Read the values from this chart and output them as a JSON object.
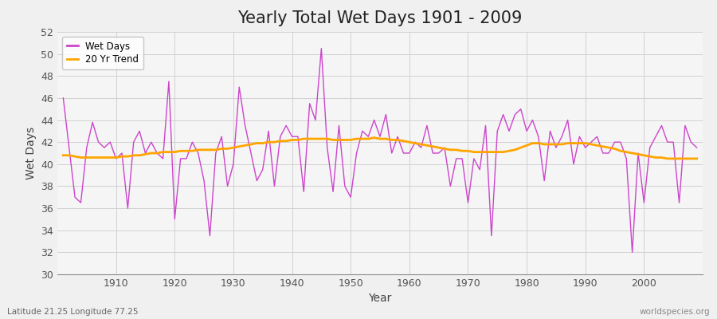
{
  "title": "Yearly Total Wet Days 1901 - 2009",
  "xlabel": "Year",
  "ylabel": "Wet Days",
  "subtitle_left": "Latitude 21.25 Longitude 77.25",
  "subtitle_right": "worldspecies.org",
  "years": [
    1901,
    1902,
    1903,
    1904,
    1905,
    1906,
    1907,
    1908,
    1909,
    1910,
    1911,
    1912,
    1913,
    1914,
    1915,
    1916,
    1917,
    1918,
    1919,
    1920,
    1921,
    1922,
    1923,
    1924,
    1925,
    1926,
    1927,
    1928,
    1929,
    1930,
    1931,
    1932,
    1933,
    1934,
    1935,
    1936,
    1937,
    1938,
    1939,
    1940,
    1941,
    1942,
    1943,
    1944,
    1945,
    1946,
    1947,
    1948,
    1949,
    1950,
    1951,
    1952,
    1953,
    1954,
    1955,
    1956,
    1957,
    1958,
    1959,
    1960,
    1961,
    1962,
    1963,
    1964,
    1965,
    1966,
    1967,
    1968,
    1969,
    1970,
    1971,
    1972,
    1973,
    1974,
    1975,
    1976,
    1977,
    1978,
    1979,
    1980,
    1981,
    1982,
    1983,
    1984,
    1985,
    1986,
    1987,
    1988,
    1989,
    1990,
    1991,
    1992,
    1993,
    1994,
    1995,
    1996,
    1997,
    1998,
    1999,
    2000,
    2001,
    2002,
    2003,
    2004,
    2005,
    2006,
    2007,
    2008,
    2009
  ],
  "wet_days": [
    46.0,
    41.5,
    37.0,
    36.5,
    41.5,
    43.8,
    42.0,
    41.5,
    42.0,
    40.5,
    41.0,
    36.0,
    42.0,
    43.0,
    41.0,
    42.0,
    41.0,
    40.5,
    47.5,
    35.0,
    40.5,
    40.5,
    42.0,
    41.0,
    38.5,
    33.5,
    41.0,
    42.5,
    38.0,
    40.0,
    47.0,
    43.5,
    41.0,
    38.5,
    39.5,
    43.0,
    38.0,
    42.5,
    43.5,
    42.5,
    42.5,
    37.5,
    45.5,
    44.0,
    50.5,
    41.5,
    37.5,
    43.5,
    38.0,
    37.0,
    41.0,
    43.0,
    42.5,
    44.0,
    42.5,
    44.5,
    41.0,
    42.5,
    41.0,
    41.0,
    42.0,
    41.5,
    43.5,
    41.0,
    41.0,
    41.5,
    38.0,
    40.5,
    40.5,
    36.5,
    40.5,
    39.5,
    43.5,
    33.5,
    43.0,
    44.5,
    43.0,
    44.5,
    45.0,
    43.0,
    44.0,
    42.5,
    38.5,
    43.0,
    41.5,
    42.5,
    44.0,
    40.0,
    42.5,
    41.5,
    42.0,
    42.5,
    41.0,
    41.0,
    42.0,
    42.0,
    40.5,
    32.0,
    41.0,
    36.5,
    41.5,
    42.5,
    43.5,
    42.0,
    42.0,
    36.5,
    43.5,
    42.0,
    41.5
  ],
  "trend_years": [
    1901,
    1902,
    1903,
    1904,
    1905,
    1906,
    1907,
    1908,
    1909,
    1910,
    1911,
    1912,
    1913,
    1914,
    1915,
    1916,
    1917,
    1918,
    1919,
    1920,
    1921,
    1922,
    1923,
    1924,
    1925,
    1926,
    1927,
    1928,
    1929,
    1930,
    1931,
    1932,
    1933,
    1934,
    1935,
    1936,
    1937,
    1938,
    1939,
    1940,
    1941,
    1942,
    1943,
    1944,
    1945,
    1946,
    1947,
    1948,
    1949,
    1950,
    1951,
    1952,
    1953,
    1954,
    1955,
    1956,
    1957,
    1958,
    1959,
    1960,
    1961,
    1962,
    1963,
    1964,
    1965,
    1966,
    1967,
    1968,
    1969,
    1970,
    1971,
    1972,
    1973,
    1974,
    1975,
    1976,
    1977,
    1978,
    1979,
    1980,
    1981,
    1982,
    1983,
    1984,
    1985,
    1986,
    1987,
    1988,
    1989,
    1990,
    1991,
    1992,
    1993,
    1994,
    1995,
    1996,
    1997,
    1998,
    1999,
    2000,
    2001,
    2002,
    2003,
    2004,
    2005,
    2006,
    2007,
    2008,
    2009
  ],
  "trend_values": [
    40.8,
    40.8,
    40.7,
    40.6,
    40.6,
    40.6,
    40.6,
    40.6,
    40.6,
    40.6,
    40.7,
    40.7,
    40.8,
    40.8,
    40.9,
    41.0,
    41.0,
    41.1,
    41.1,
    41.1,
    41.2,
    41.2,
    41.2,
    41.3,
    41.3,
    41.3,
    41.3,
    41.4,
    41.4,
    41.5,
    41.6,
    41.7,
    41.8,
    41.9,
    41.9,
    42.0,
    42.0,
    42.1,
    42.1,
    42.2,
    42.2,
    42.3,
    42.3,
    42.3,
    42.3,
    42.3,
    42.2,
    42.2,
    42.2,
    42.2,
    42.3,
    42.3,
    42.3,
    42.4,
    42.3,
    42.3,
    42.2,
    42.2,
    42.1,
    42.0,
    41.9,
    41.8,
    41.7,
    41.6,
    41.5,
    41.4,
    41.3,
    41.3,
    41.2,
    41.2,
    41.1,
    41.1,
    41.1,
    41.1,
    41.1,
    41.1,
    41.2,
    41.3,
    41.5,
    41.7,
    41.9,
    41.9,
    41.8,
    41.8,
    41.8,
    41.8,
    41.9,
    41.9,
    41.9,
    41.9,
    41.8,
    41.7,
    41.6,
    41.5,
    41.4,
    41.2,
    41.1,
    41.0,
    40.9,
    40.8,
    40.7,
    40.6,
    40.6,
    40.5,
    40.5,
    40.5,
    40.5,
    40.5,
    40.5
  ],
  "wet_days_color": "#CC44CC",
  "trend_color": "#FFA500",
  "bg_color": "#F0F0F0",
  "plot_bg_color": "#F5F5F5",
  "ylim": [
    30,
    52
  ],
  "yticks": [
    30,
    32,
    34,
    36,
    38,
    40,
    42,
    44,
    46,
    48,
    50,
    52
  ],
  "xticks": [
    1910,
    1920,
    1930,
    1940,
    1950,
    1960,
    1970,
    1980,
    1990,
    2000
  ],
  "title_fontsize": 15,
  "label_fontsize": 10,
  "tick_fontsize": 9,
  "grid_color": "#CCCCCC",
  "xlim_left": 1900,
  "xlim_right": 2010
}
